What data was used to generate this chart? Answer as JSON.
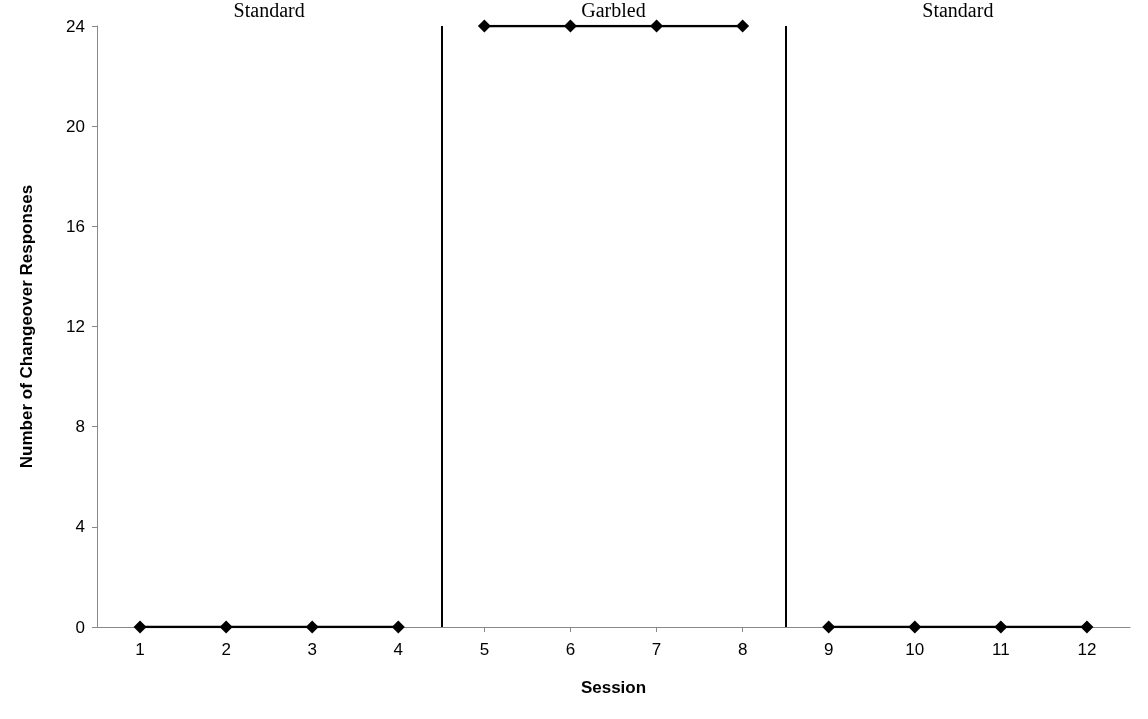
{
  "chart_data": {
    "type": "line",
    "xlabel": "Session",
    "ylabel": "Number of Changeover Responses",
    "xlim": [
      0.5,
      12.5
    ],
    "xticks": [
      1,
      2,
      3,
      4,
      5,
      6,
      7,
      8,
      9,
      10,
      11,
      12
    ],
    "ylim": [
      0,
      24
    ],
    "yticks": [
      0,
      4,
      8,
      12,
      16,
      20,
      24
    ],
    "series": [
      {
        "color": "#000000",
        "x": [
          1,
          2,
          3,
          4
        ],
        "values": [
          0,
          0,
          0,
          0
        ]
      },
      {
        "color": "#000000",
        "x": [
          5,
          6,
          7,
          8
        ],
        "values": [
          24,
          24,
          24,
          24
        ]
      },
      {
        "color": "#000000",
        "x": [
          9,
          10,
          11,
          12
        ],
        "values": [
          0,
          0,
          0,
          0
        ]
      }
    ],
    "ref_lines": [
      {
        "axis": "x",
        "value": 4.5,
        "color": "#000000"
      },
      {
        "axis": "x",
        "value": 8.5,
        "color": "#000000"
      }
    ],
    "annotations": [
      "Standard",
      "Garbled",
      "Standard"
    ],
    "marker": "diamond",
    "line_style": "solid",
    "grid": false,
    "legend": false
  }
}
